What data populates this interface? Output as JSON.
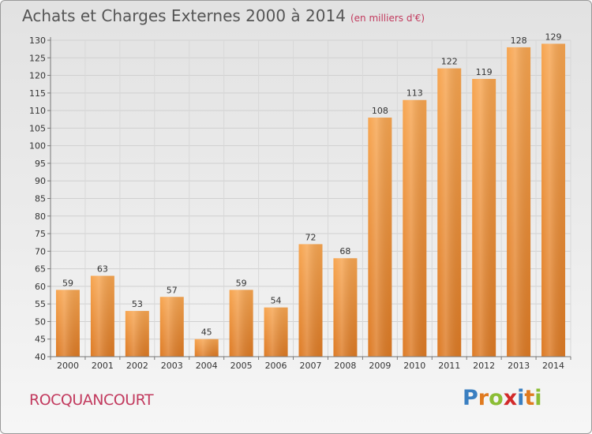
{
  "title": "Achats et Charges Externes 2000 à 2014",
  "subtitle": "(en milliers d'€)",
  "commune": "ROCQUANCOURT",
  "logo": {
    "text": "Proxiti",
    "letters": [
      "P",
      "r",
      "o",
      "x",
      "i",
      "t",
      "i"
    ],
    "colors": [
      "#3a7fc1",
      "#e07a1f",
      "#8bbd35",
      "#d22a2a",
      "#3a7fc1",
      "#e07a1f",
      "#8bbd35"
    ]
  },
  "colors": {
    "bar_light": "#f7a550",
    "bar_dark": "#dd7a24",
    "accent": "#c23a5e"
  },
  "chart_data": {
    "type": "bar",
    "categories": [
      "2000",
      "2001",
      "2002",
      "2003",
      "2004",
      "2005",
      "2006",
      "2007",
      "2008",
      "2009",
      "2010",
      "2011",
      "2012",
      "2013",
      "2014"
    ],
    "values": [
      59,
      63,
      53,
      57,
      45,
      59,
      54,
      72,
      68,
      108,
      113,
      122,
      119,
      128,
      129
    ],
    "title": "Achats et Charges Externes 2000 à 2014",
    "xlabel": "",
    "ylabel": "",
    "ylim": [
      40,
      130
    ],
    "yticks": [
      40,
      45,
      50,
      55,
      60,
      65,
      70,
      75,
      80,
      85,
      90,
      95,
      100,
      105,
      110,
      115,
      120,
      125,
      130
    ],
    "grid": true,
    "data_labels": true
  }
}
